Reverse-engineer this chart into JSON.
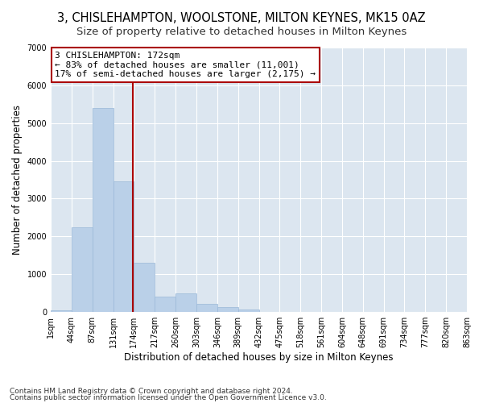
{
  "title": "3, CHISLEHAMPTON, WOOLSTONE, MILTON KEYNES, MK15 0AZ",
  "subtitle": "Size of property relative to detached houses in Milton Keynes",
  "xlabel": "Distribution of detached houses by size in Milton Keynes",
  "ylabel": "Number of detached properties",
  "footnote1": "Contains HM Land Registry data © Crown copyright and database right 2024.",
  "footnote2": "Contains public sector information licensed under the Open Government Licence v3.0.",
  "bar_values": [
    50,
    2250,
    5400,
    3450,
    1300,
    400,
    500,
    220,
    120,
    70,
    0,
    0,
    0,
    0,
    0,
    0,
    0,
    0,
    0,
    0
  ],
  "bin_labels": [
    "1sqm",
    "44sqm",
    "87sqm",
    "131sqm",
    "174sqm",
    "217sqm",
    "260sqm",
    "303sqm",
    "346sqm",
    "389sqm",
    "432sqm",
    "475sqm",
    "518sqm",
    "561sqm",
    "604sqm",
    "648sqm",
    "691sqm",
    "734sqm",
    "777sqm",
    "820sqm",
    "863sqm"
  ],
  "bar_color": "#bad0e8",
  "bar_edge_color": "#9ab8d8",
  "property_label": "3 CHISLEHAMPTON: 172sqm",
  "annotation_line1": "← 83% of detached houses are smaller (11,001)",
  "annotation_line2": "17% of semi-detached houses are larger (2,175) →",
  "vline_color": "#aa0000",
  "annotation_box_facecolor": "#ffffff",
  "annotation_box_edgecolor": "#aa0000",
  "ylim": [
    0,
    7000
  ],
  "yticks": [
    0,
    1000,
    2000,
    3000,
    4000,
    5000,
    6000,
    7000
  ],
  "plot_bg_color": "#dce6f0",
  "fig_bg_color": "#ffffff",
  "grid_color": "#ffffff",
  "title_fontsize": 10.5,
  "subtitle_fontsize": 9.5,
  "axis_label_fontsize": 8.5,
  "tick_fontsize": 7,
  "annotation_fontsize": 8,
  "footnote_fontsize": 6.5
}
